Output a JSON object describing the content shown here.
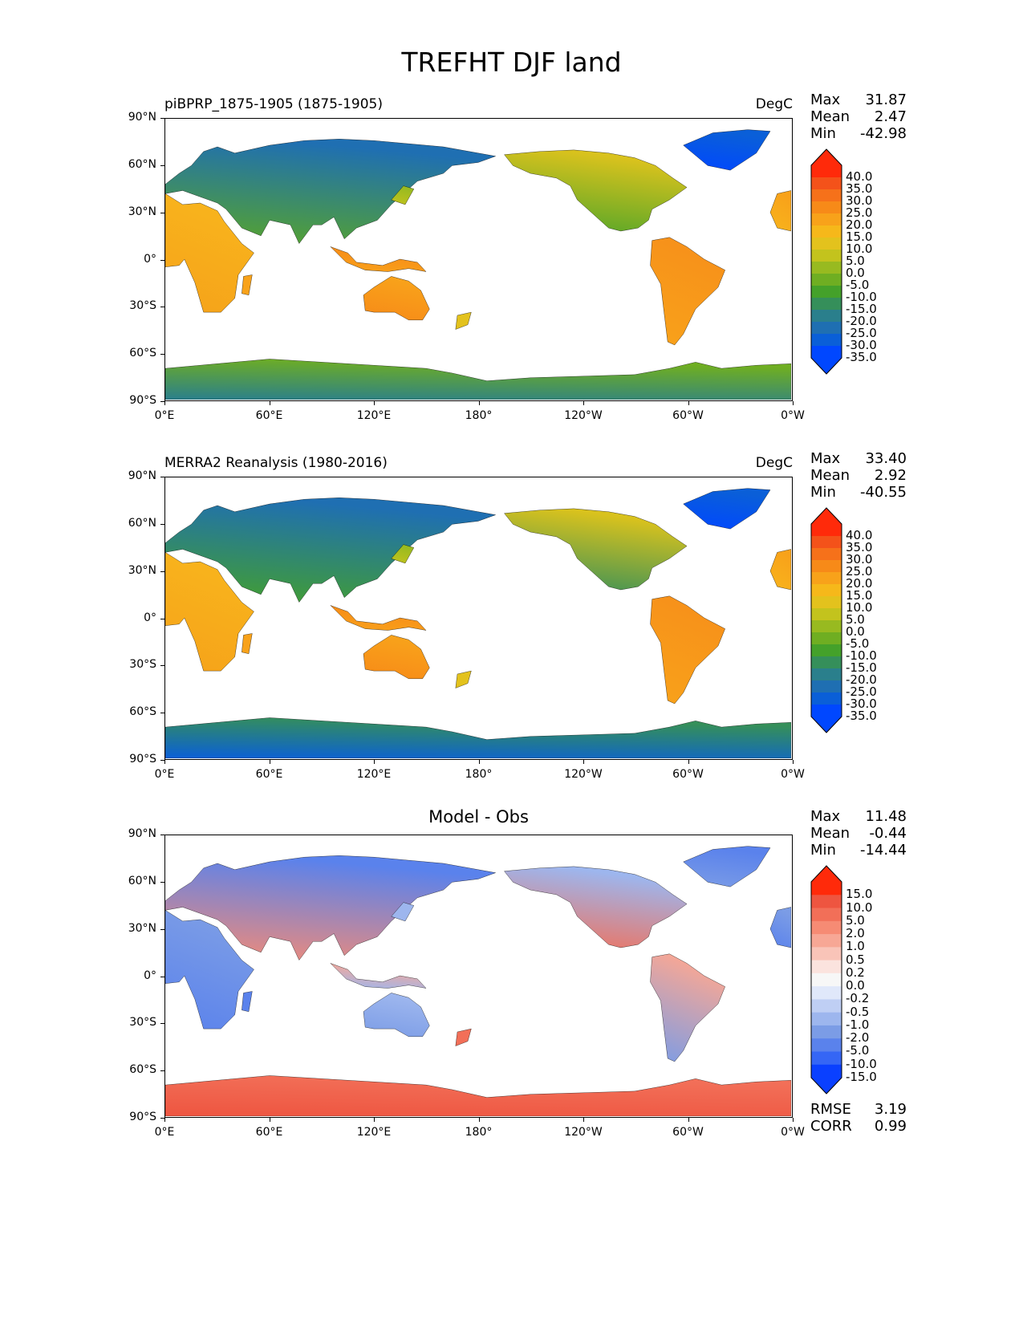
{
  "figure_title": "TREFHT DJF land",
  "axes": {
    "lat_ticks": [
      "90°N",
      "60°N",
      "30°N",
      "0°",
      "30°S",
      "60°S",
      "90°S"
    ],
    "lon_ticks": [
      "0°E",
      "60°E",
      "120°E",
      "180°",
      "120°W",
      "60°W",
      "0°W"
    ]
  },
  "colors": {
    "abs_cmap": [
      "#0047ff",
      "#0a5fd8",
      "#1f6fb2",
      "#2a7f8c",
      "#358f5a",
      "#44a12a",
      "#6fae22",
      "#98ba20",
      "#c3c31d",
      "#e3c21d",
      "#f6b81a",
      "#f8a21a",
      "#f78a18",
      "#f6711a",
      "#f4521a",
      "#ff2a0a"
    ],
    "diff_cmap": [
      "#0a40ff",
      "#3566f5",
      "#5a82ec",
      "#7b9ce6",
      "#9db6ee",
      "#bfcff4",
      "#e0e8fa",
      "#f7f7f7",
      "#fbe3de",
      "#f9c4b8",
      "#f7a795",
      "#f68b74",
      "#f26f58",
      "#ee5540",
      "#ff2a0a"
    ]
  },
  "panels": [
    {
      "id": "test",
      "title": "piBPRP_1875-1905 (1875-1905)",
      "units": "DegC",
      "stats": [
        {
          "label": "Max",
          "value": "31.87"
        },
        {
          "label": "Mean",
          "value": "2.47"
        },
        {
          "label": "Min",
          "value": "-42.98"
        }
      ],
      "colorbar_labels": [
        "40.0",
        "35.0",
        "30.0",
        "25.0",
        "20.0",
        "15.0",
        "10.0",
        "5.0",
        "0.0",
        "-5.0",
        "-10.0",
        "-15.0",
        "-20.0",
        "-25.0",
        "-30.0",
        "-35.0"
      ],
      "colormap": "abs",
      "antarctica": "teal"
    },
    {
      "id": "ref",
      "title": "MERRA2 Reanalysis (1980-2016)",
      "units": "DegC",
      "stats": [
        {
          "label": "Max",
          "value": "33.40"
        },
        {
          "label": "Mean",
          "value": "2.92"
        },
        {
          "label": "Min",
          "value": "-40.55"
        }
      ],
      "colorbar_labels": [
        "40.0",
        "35.0",
        "30.0",
        "25.0",
        "20.0",
        "15.0",
        "10.0",
        "5.0",
        "0.0",
        "-5.0",
        "-10.0",
        "-15.0",
        "-20.0",
        "-25.0",
        "-30.0",
        "-35.0"
      ],
      "colormap": "abs",
      "antarctica": "blue"
    },
    {
      "id": "diff",
      "title": "Model - Obs",
      "units": "",
      "stats": [
        {
          "label": "Max",
          "value": "11.48"
        },
        {
          "label": "Mean",
          "value": "-0.44"
        },
        {
          "label": "Min",
          "value": "-14.44"
        }
      ],
      "colorbar_labels": [
        "15.0",
        "10.0",
        "5.0",
        "2.0",
        "1.0",
        "0.5",
        "0.2",
        "0.0",
        "-0.2",
        "-0.5",
        "-1.0",
        "-2.0",
        "-5.0",
        "-10.0",
        "-15.0"
      ],
      "colormap": "diff",
      "footer_stats": [
        {
          "label": "RMSE",
          "value": "3.19"
        },
        {
          "label": "CORR",
          "value": "0.99"
        }
      ]
    }
  ]
}
